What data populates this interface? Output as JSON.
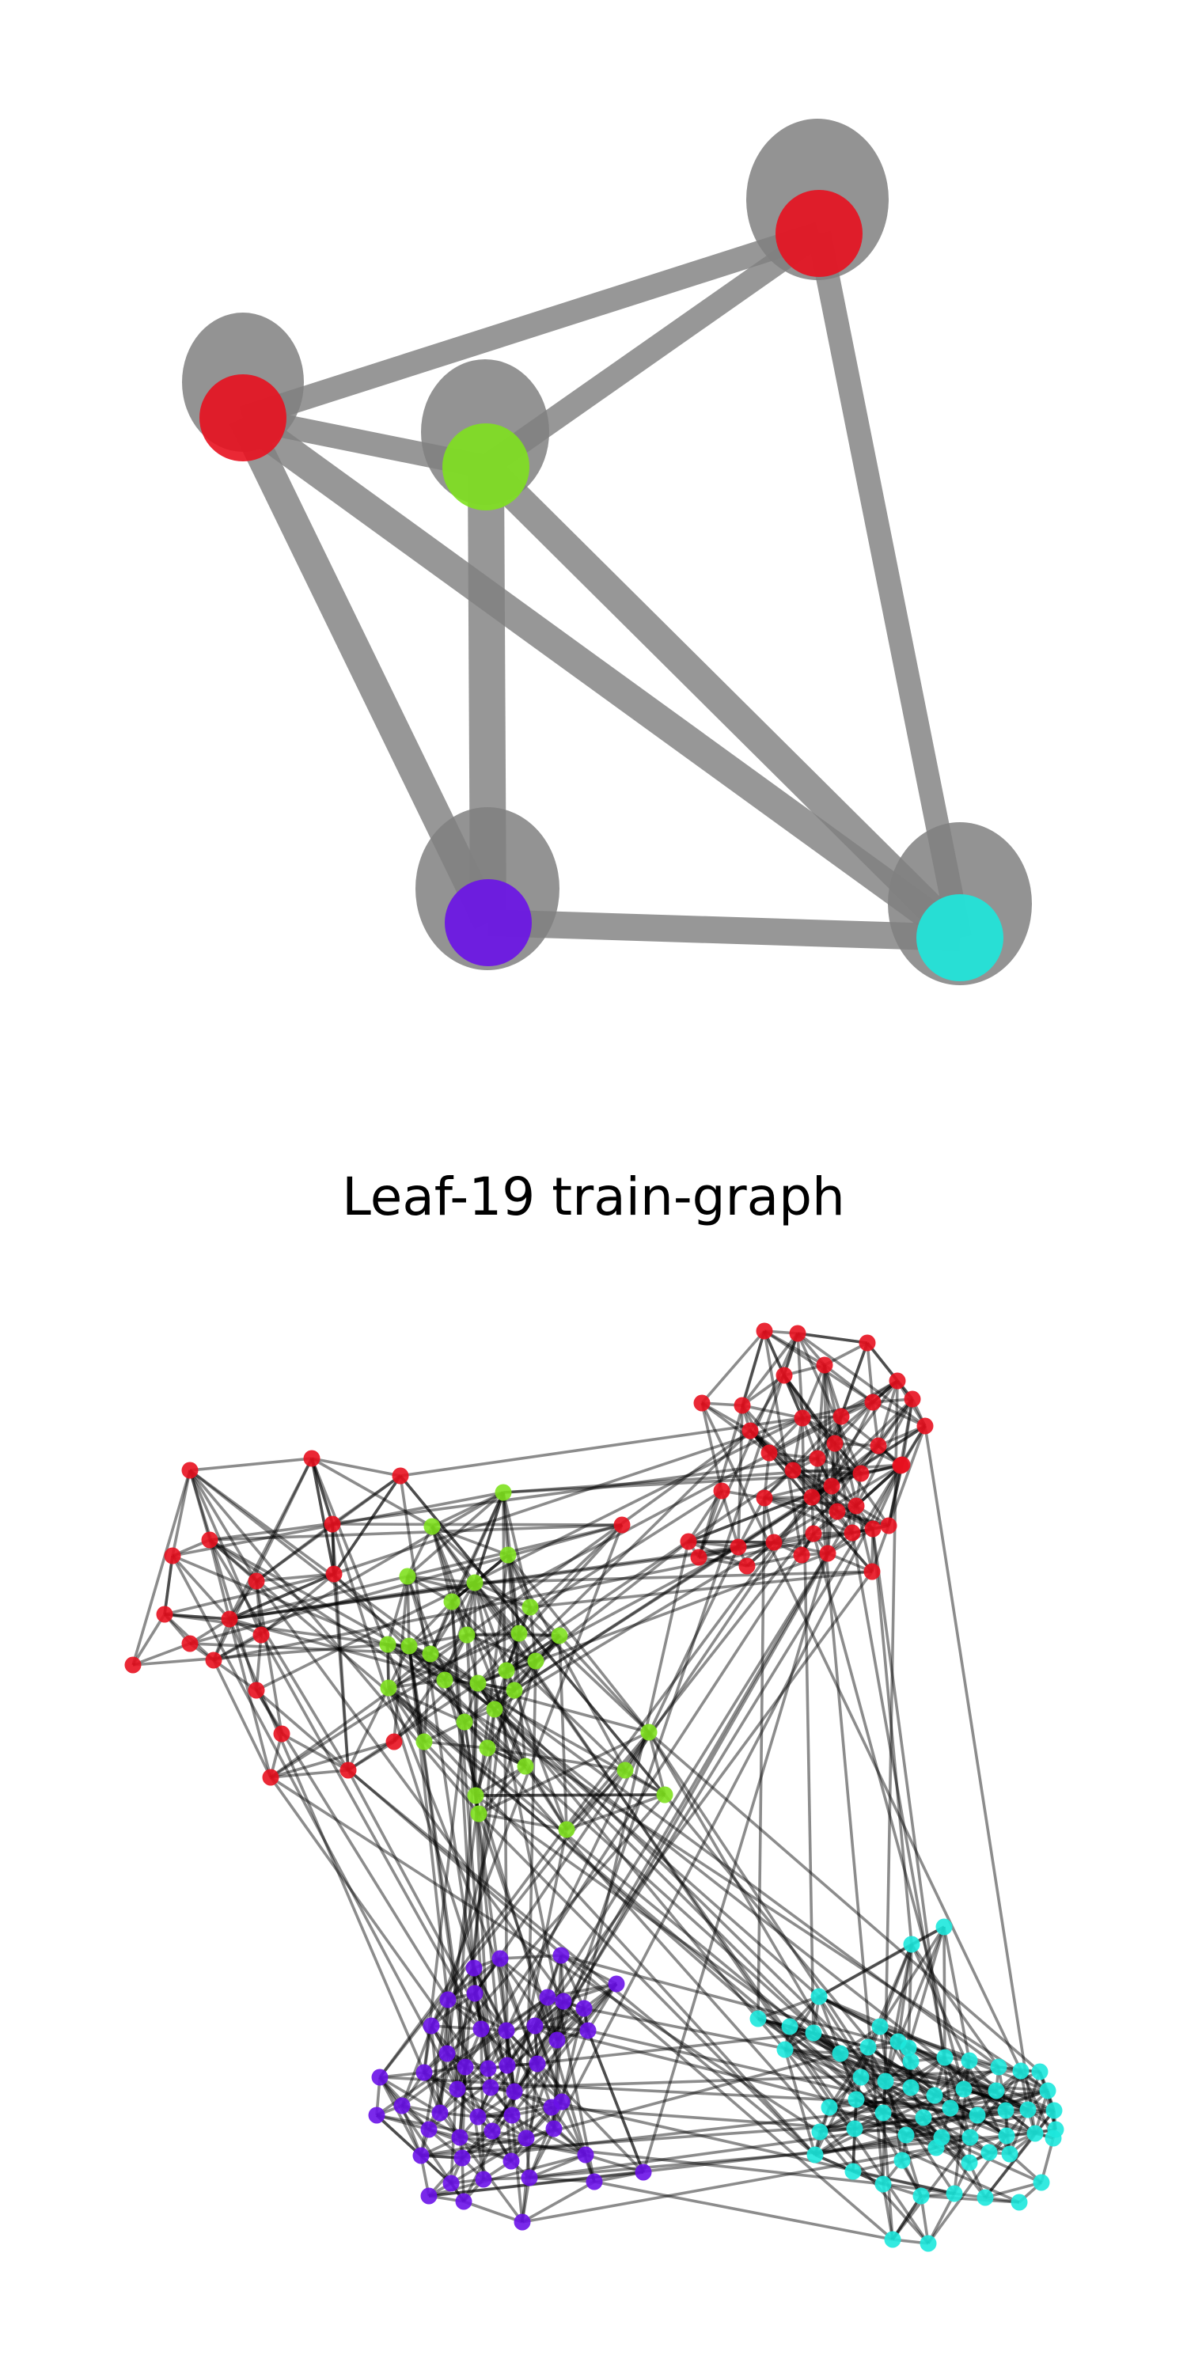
{
  "figure": {
    "title": "Leaf-19 train-graph"
  },
  "community_graph": {
    "nodes": [
      {
        "id": "community-1",
        "color": "#e8111f"
      },
      {
        "id": "community-2",
        "color": "#e8111f"
      },
      {
        "id": "community-3",
        "color": "#7fe11f"
      },
      {
        "id": "community-4",
        "color": "#6a12e8"
      },
      {
        "id": "community-5",
        "color": "#1de8dd"
      }
    ],
    "edges": [
      [
        "community-1",
        "community-2"
      ],
      [
        "community-1",
        "community-3"
      ],
      [
        "community-1",
        "community-5"
      ],
      [
        "community-2",
        "community-3"
      ],
      [
        "community-2",
        "community-4"
      ],
      [
        "community-2",
        "community-5"
      ],
      [
        "community-3",
        "community-4"
      ],
      [
        "community-3",
        "community-5"
      ],
      [
        "community-4",
        "community-5"
      ]
    ],
    "halo_color": "#808080",
    "edge_color": "#808080"
  },
  "train_graph": {
    "node_colors": {
      "red_left": "#e8111f",
      "red_top": "#e8111f",
      "green": "#7fe11f",
      "purple": "#6a12e8",
      "cyan": "#1de8dd"
    },
    "edge_color": "#000000"
  }
}
